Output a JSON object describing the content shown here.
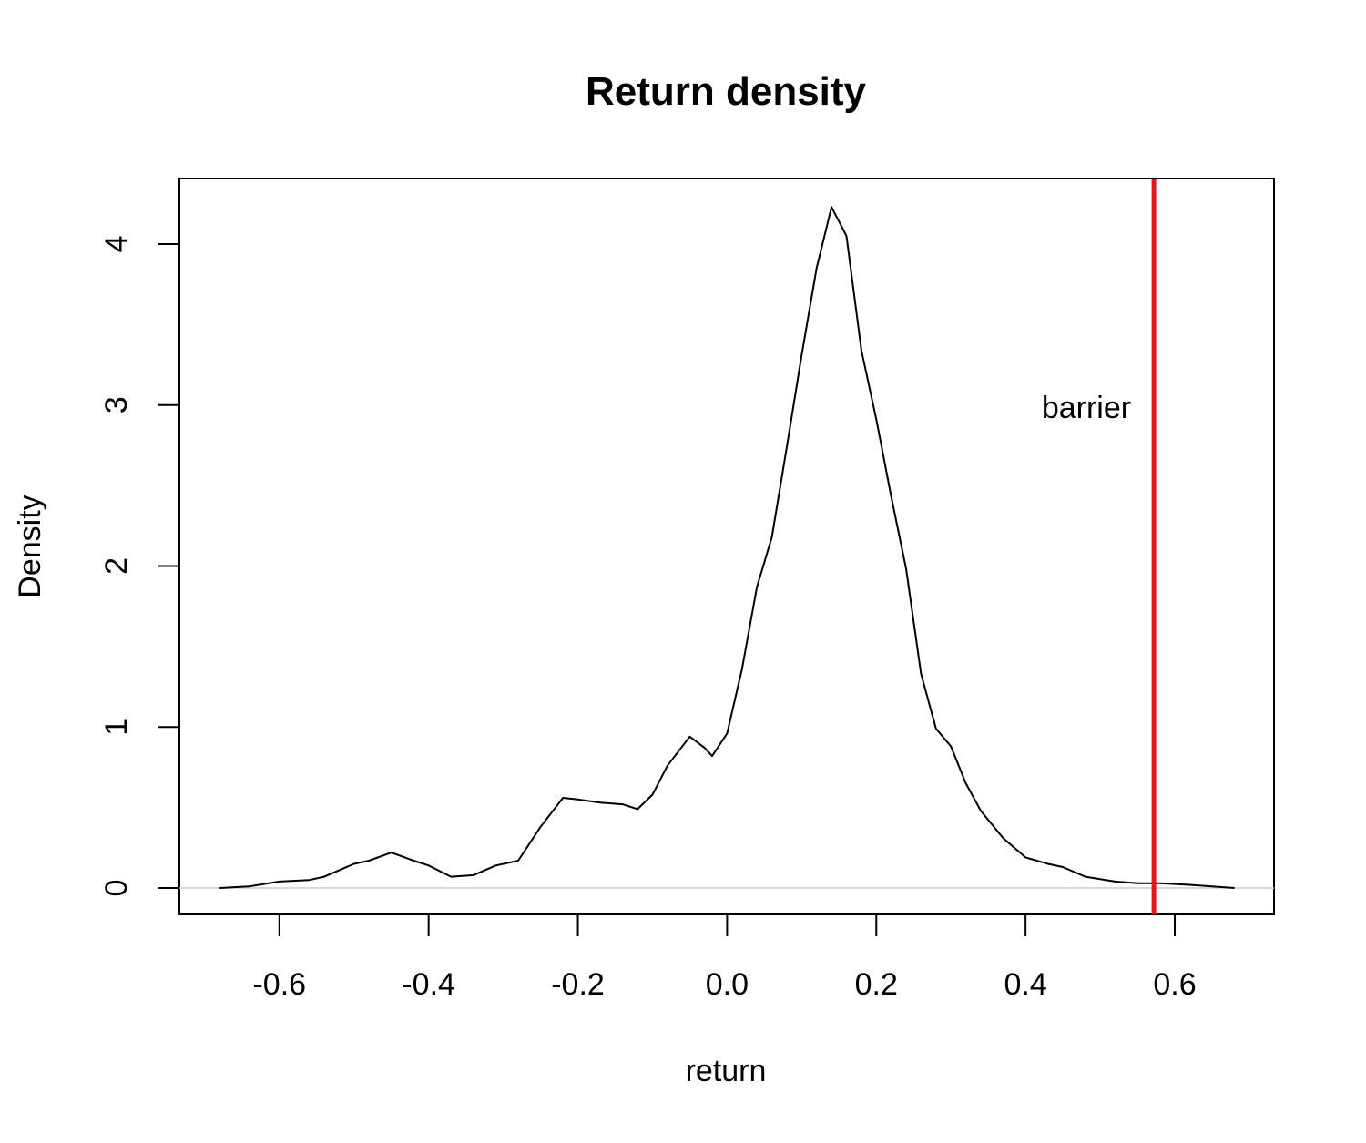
{
  "chart_data": {
    "type": "line",
    "title": "Return density",
    "x_label": "return",
    "y_label": "Density",
    "x": [
      -0.68,
      -0.64,
      -0.6,
      -0.56,
      -0.54,
      -0.5,
      -0.48,
      -0.45,
      -0.42,
      -0.4,
      -0.37,
      -0.34,
      -0.31,
      -0.28,
      -0.25,
      -0.22,
      -0.2,
      -0.17,
      -0.14,
      -0.12,
      -0.1,
      -0.08,
      -0.05,
      -0.03,
      -0.02,
      0.0,
      0.02,
      0.04,
      0.06,
      0.08,
      0.1,
      0.12,
      0.14,
      0.16,
      0.18,
      0.2,
      0.22,
      0.24,
      0.26,
      0.28,
      0.3,
      0.32,
      0.34,
      0.37,
      0.4,
      0.43,
      0.45,
      0.48,
      0.52,
      0.55,
      0.58,
      0.62,
      0.68
    ],
    "series": [
      {
        "color": "#000000",
        "values": [
          0,
          0.01,
          0.04,
          0.05,
          0.07,
          0.15,
          0.17,
          0.22,
          0.17,
          0.14,
          0.07,
          0.08,
          0.14,
          0.17,
          0.38,
          0.56,
          0.55,
          0.53,
          0.52,
          0.49,
          0.58,
          0.76,
          0.94,
          0.87,
          0.82,
          0.96,
          1.36,
          1.87,
          2.18,
          2.74,
          3.31,
          3.85,
          4.23,
          4.05,
          3.34,
          2.91,
          2.43,
          1.98,
          1.33,
          0.99,
          0.88,
          0.65,
          0.48,
          0.31,
          0.19,
          0.15,
          0.13,
          0.07,
          0.04,
          0.03,
          0.03,
          0.02,
          0
        ]
      }
    ],
    "xlim": [
      -0.734,
      0.733
    ],
    "ylim": [
      -0.164,
      4.407
    ],
    "xticks": [
      -0.6,
      -0.4,
      -0.2,
      {
        "value": 0,
        "label": "0.0"
      },
      0.2,
      0.4,
      0.6
    ],
    "yticks": [
      0,
      1,
      2,
      3,
      4
    ],
    "zero_line": true,
    "vline": {
      "x": 0.572,
      "color": "#e8141a",
      "label": "barrier"
    }
  }
}
